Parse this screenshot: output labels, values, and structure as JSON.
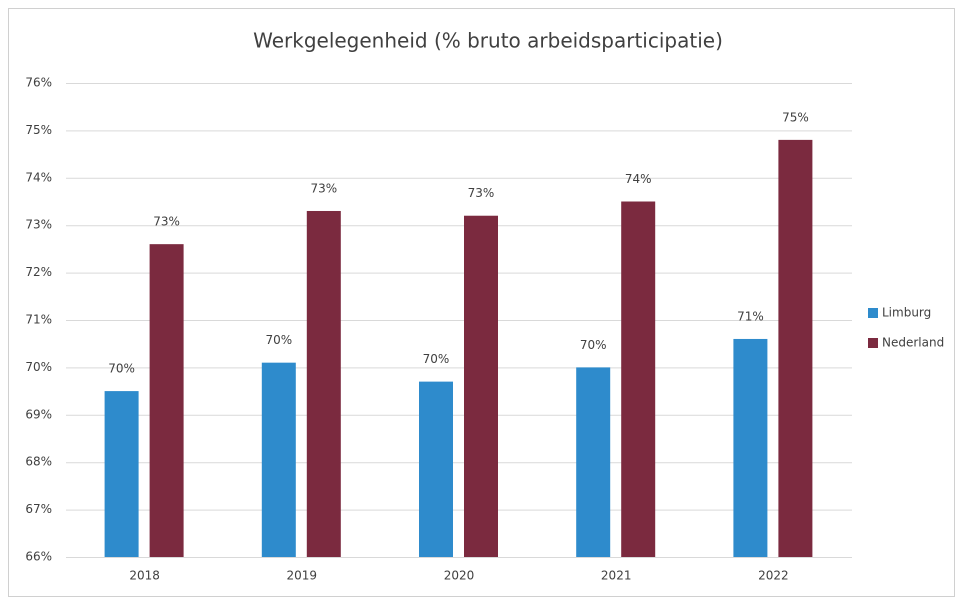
{
  "chart_data": {
    "type": "bar",
    "title": "Werkgelegenheid (% bruto arbeidsparticipatie)",
    "categories": [
      "2018",
      "2019",
      "2020",
      "2021",
      "2022"
    ],
    "series": [
      {
        "name": "Limburg",
        "color": "#2e8bcc",
        "values": [
          69.5,
          70.1,
          69.7,
          70.0,
          70.6
        ],
        "value_labels": [
          "70%",
          "70%",
          "70%",
          "70%",
          "71%"
        ]
      },
      {
        "name": "Nederland",
        "color": "#7b2a3f",
        "values": [
          72.6,
          73.3,
          73.2,
          73.5,
          74.8
        ],
        "value_labels": [
          "73%",
          "73%",
          "73%",
          "74%",
          "75%"
        ]
      }
    ],
    "ylim": [
      66,
      76
    ],
    "yticks": [
      {
        "value": 66,
        "label": "66%"
      },
      {
        "value": 67,
        "label": "67%"
      },
      {
        "value": 68,
        "label": "68%"
      },
      {
        "value": 69,
        "label": "69%"
      },
      {
        "value": 70,
        "label": "70%"
      },
      {
        "value": 71,
        "label": "71%"
      },
      {
        "value": 72,
        "label": "72%"
      },
      {
        "value": 73,
        "label": "73%"
      },
      {
        "value": 74,
        "label": "74%"
      },
      {
        "value": 75,
        "label": "75%"
      },
      {
        "value": 76,
        "label": "76%"
      }
    ],
    "grid": true,
    "legend": "right"
  }
}
